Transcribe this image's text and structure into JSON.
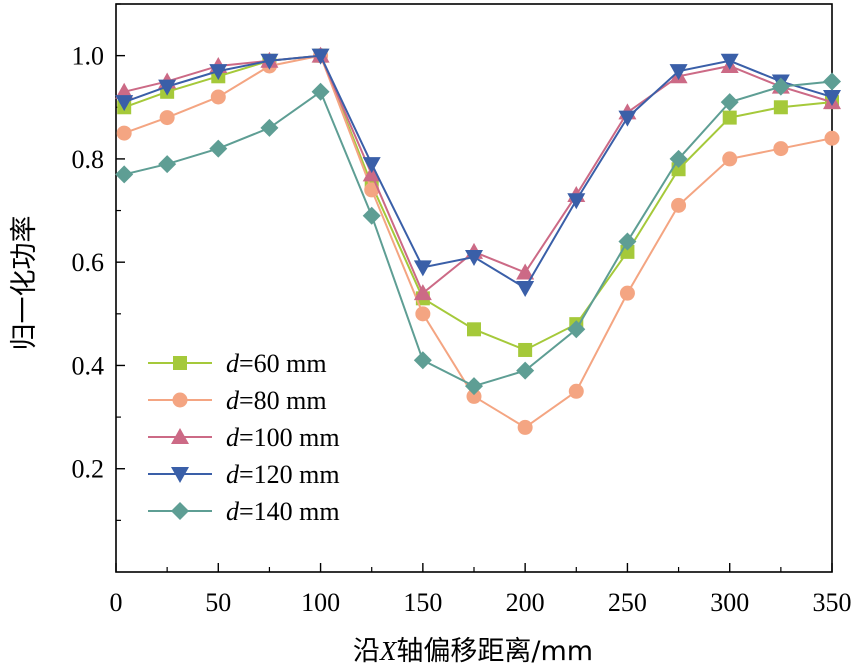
{
  "chart_data": {
    "type": "line",
    "xlabel": "沿X轴偏移距离/mm",
    "ylabel": "归一化功率",
    "xlim": [
      0,
      350
    ],
    "ylim": [
      0,
      1.1
    ],
    "xticks": [
      0,
      50,
      100,
      150,
      200,
      250,
      300,
      350
    ],
    "xtick_labels": [
      "0",
      "50",
      "100",
      "150",
      "200",
      "250",
      "300",
      "350"
    ],
    "yticks": [
      0.2,
      0.4,
      0.6,
      0.8,
      1.0
    ],
    "ytick_labels": [
      "0.2",
      "0.4",
      "0.6",
      "0.8",
      "1.0"
    ],
    "grid": false,
    "legend_position": "bottom-left",
    "x": [
      0,
      25,
      50,
      75,
      100,
      125,
      150,
      175,
      200,
      225,
      250,
      275,
      300,
      325,
      350
    ],
    "series": [
      {
        "name": "d=60 mm",
        "legend_italic": "d",
        "legend_rest": "=60 mm",
        "color": "#a5c93a",
        "marker": "square",
        "values": [
          0.9,
          0.93,
          0.96,
          0.99,
          1.0,
          0.75,
          0.53,
          0.47,
          0.43,
          0.48,
          0.62,
          0.78,
          0.88,
          0.9,
          0.91
        ]
      },
      {
        "name": "d=80 mm",
        "legend_italic": "d",
        "legend_rest": "=80 mm",
        "color": "#f4a582",
        "marker": "circle",
        "values": [
          0.85,
          0.88,
          0.92,
          0.98,
          1.0,
          0.74,
          0.5,
          0.34,
          0.28,
          0.35,
          0.54,
          0.71,
          0.8,
          0.82,
          0.84
        ]
      },
      {
        "name": "d=100 mm",
        "legend_italic": "d",
        "legend_rest": "=100 mm",
        "color": "#cc6a86",
        "marker": "triangle-up",
        "values": [
          0.93,
          0.95,
          0.98,
          0.99,
          1.0,
          0.77,
          0.54,
          0.62,
          0.58,
          0.73,
          0.89,
          0.96,
          0.98,
          0.94,
          0.91
        ]
      },
      {
        "name": "d=120 mm",
        "legend_italic": "d",
        "legend_rest": "=120 mm",
        "color": "#3a5fa8",
        "marker": "triangle-down",
        "values": [
          0.91,
          0.94,
          0.97,
          0.99,
          1.0,
          0.79,
          0.59,
          0.61,
          0.55,
          0.72,
          0.88,
          0.97,
          0.99,
          0.95,
          0.92
        ]
      },
      {
        "name": "d=140 mm",
        "legend_italic": "d",
        "legend_rest": "=140 mm",
        "color": "#5e9e94",
        "marker": "diamond",
        "values": [
          0.77,
          0.79,
          0.82,
          0.86,
          0.93,
          0.69,
          0.41,
          0.36,
          0.39,
          0.47,
          0.64,
          0.8,
          0.91,
          0.94,
          0.95
        ]
      }
    ]
  }
}
